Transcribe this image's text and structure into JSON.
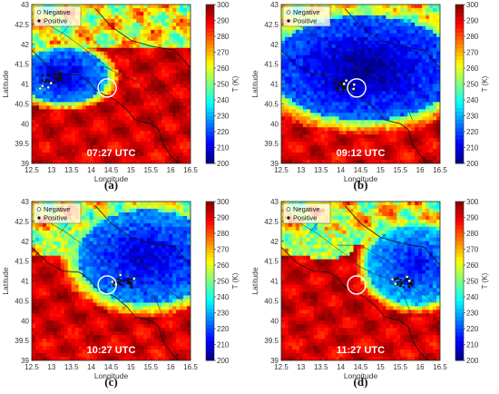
{
  "figure": {
    "panels": [
      {
        "id": "a",
        "title": "(a)",
        "time_label": "07:27 UTC",
        "storm": "west"
      },
      {
        "id": "b",
        "title": "(b)",
        "time_label": "09:12 UTC",
        "storm": "center"
      },
      {
        "id": "c",
        "title": "(c)",
        "time_label": "10:27 UTC",
        "storm": "northeast"
      },
      {
        "id": "d",
        "title": "(d)",
        "time_label": "11:27 UTC",
        "storm": "east"
      }
    ],
    "legend": {
      "negative": "Negative",
      "positive": "Positive"
    },
    "xlabel": "Longitude",
    "ylabel": "Latitude",
    "colorbar_label": "T (K)",
    "colorbar_ticks": [
      "300",
      "290",
      "280",
      "270",
      "260",
      "250",
      "240",
      "230",
      "220",
      "210",
      "200"
    ],
    "x_ticks": [
      "12.5",
      "13",
      "13.5",
      "14",
      "14.5",
      "15",
      "15.5",
      "16",
      "16.5"
    ],
    "y_ticks": [
      "43",
      "42.5",
      "42",
      "41.5",
      "41",
      "40.5",
      "40",
      "39.5",
      "39"
    ]
  },
  "chart_data": {
    "type": "heatmap",
    "xlim": [
      12.5,
      16.5
    ],
    "ylim": [
      39,
      43
    ],
    "colorbar_range": [
      200,
      300
    ],
    "colormap": "jet",
    "highlight_circle": {
      "lon": 14.4,
      "lat": 40.9
    },
    "panels": [
      {
        "id": "a",
        "time": "07:27 UTC",
        "cold_core": {
          "lon": 13.3,
          "lat": 41.2,
          "min_T": 205
        }
      },
      {
        "id": "b",
        "time": "09:12 UTC",
        "cold_core": {
          "lon": 14.6,
          "lat": 41.4,
          "min_T": 200
        }
      },
      {
        "id": "c",
        "time": "10:27 UTC",
        "cold_core": {
          "lon": 15.4,
          "lat": 41.6,
          "min_T": 205
        }
      },
      {
        "id": "d",
        "time": "11:27 UTC",
        "cold_core": {
          "lon": 15.9,
          "lat": 41.4,
          "min_T": 210
        }
      }
    ]
  }
}
